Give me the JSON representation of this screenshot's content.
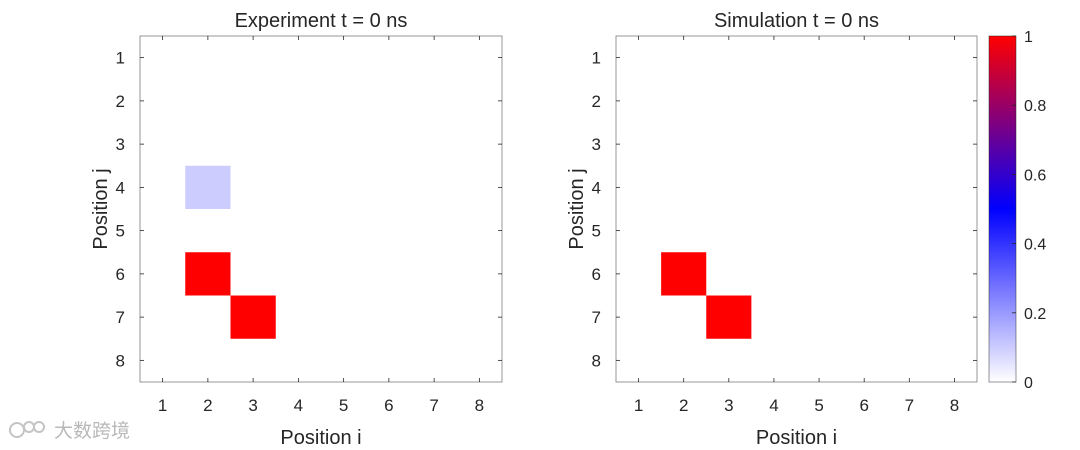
{
  "chart_data": [
    {
      "type": "heatmap",
      "title": "Experiment t = 0 ns",
      "xlabel": "Position i",
      "ylabel": "Position j",
      "x": [
        1,
        2,
        3,
        4,
        5,
        6,
        7,
        8
      ],
      "y": [
        1,
        2,
        3,
        4,
        5,
        6,
        7,
        8
      ],
      "xlim": [
        0.5,
        8.5
      ],
      "ylim": [
        0.5,
        8.5
      ],
      "y_direction": "reversed",
      "grid": false,
      "nonzero_cells": [
        {
          "i": 2,
          "j": 4,
          "value": 0.1
        },
        {
          "i": 2,
          "j": 6,
          "value": 1
        },
        {
          "i": 3,
          "j": 7,
          "value": 1
        }
      ],
      "other_cells_value": 0
    },
    {
      "type": "heatmap",
      "title": "Simulation t = 0 ns",
      "xlabel": "Position i",
      "ylabel": "Position j",
      "x": [
        1,
        2,
        3,
        4,
        5,
        6,
        7,
        8
      ],
      "y": [
        1,
        2,
        3,
        4,
        5,
        6,
        7,
        8
      ],
      "xlim": [
        0.5,
        8.5
      ],
      "ylim": [
        0.5,
        8.5
      ],
      "y_direction": "reversed",
      "grid": false,
      "nonzero_cells": [
        {
          "i": 2,
          "j": 6,
          "value": 1
        },
        {
          "i": 3,
          "j": 7,
          "value": 1
        }
      ],
      "other_cells_value": 0
    }
  ],
  "colorbar": {
    "range": [
      0,
      1
    ],
    "ticks": [
      "0",
      "0.2",
      "0.4",
      "0.6",
      "0.8",
      "1"
    ],
    "tick_values": [
      0,
      0.2,
      0.4,
      0.6,
      0.8,
      1
    ],
    "colormap": [
      "#ffffff",
      "#0000ff",
      "#ff0000"
    ]
  },
  "watermark": {
    "text": "大数跨境",
    "icon": "brand-logo-icon"
  }
}
